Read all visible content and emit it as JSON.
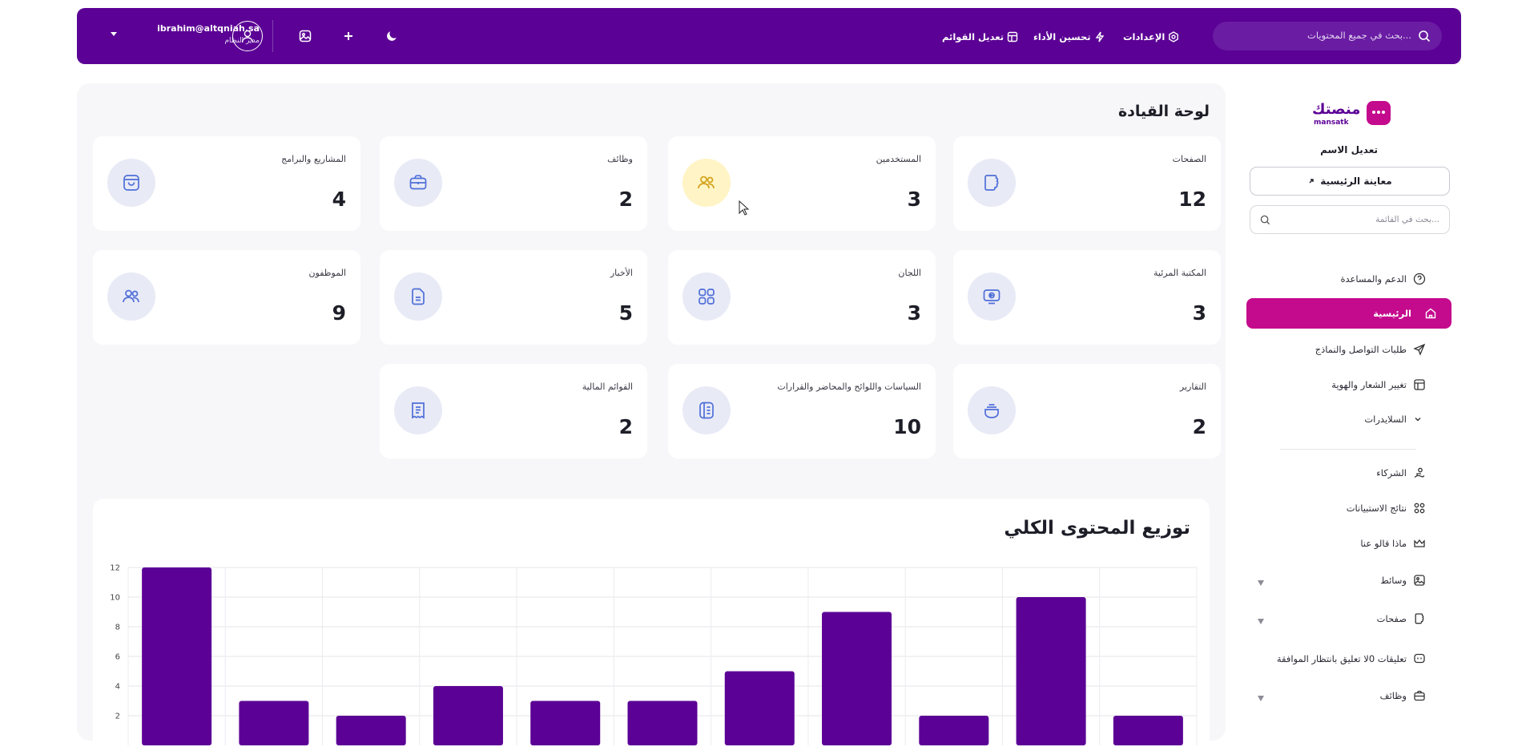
{
  "topbar": {
    "user_email": "ibrahim@altqniah.sa",
    "user_role": "مدير النظام",
    "links": {
      "edit_lists": "تعديل القوائم",
      "performance": "تحسين الأداء",
      "settings": "الإعدادات"
    },
    "search_placeholder": "بحث في جميع المحتويات..."
  },
  "dashboard": {
    "title": "لوحة القيادة",
    "cards": [
      {
        "label": "الصفحات",
        "value": "12",
        "icon": "pages-icon"
      },
      {
        "label": "المستخدمين",
        "value": "3",
        "icon": "users-icon"
      },
      {
        "label": "وظائف",
        "value": "2",
        "icon": "briefcase-icon"
      },
      {
        "label": "المشاريع والبرامج",
        "value": "4",
        "icon": "shopping-bag-icon"
      },
      {
        "label": "المكتبة المرئية",
        "value": "3",
        "icon": "video-library-icon"
      },
      {
        "label": "اللجان",
        "value": "3",
        "icon": "grid-icon"
      },
      {
        "label": "الأخبار",
        "value": "5",
        "icon": "news-icon"
      },
      {
        "label": "الموظفون",
        "value": "9",
        "icon": "employees-icon"
      },
      {
        "label": "التقارير",
        "value": "2",
        "icon": "reports-icon"
      },
      {
        "label": "السياسات واللوائح والمحاضر والقرارات",
        "value": "10",
        "icon": "policies-icon"
      },
      {
        "label": "القوائم المالية",
        "value": "2",
        "icon": "financial-lists-icon"
      }
    ]
  },
  "chart_data": {
    "type": "bar",
    "title": "توزيع المحتوى الكلي",
    "values": [
      12,
      3,
      2,
      4,
      3,
      3,
      5,
      9,
      2,
      10,
      2
    ],
    "yticks": [
      "12",
      "10",
      "8",
      "6",
      "4",
      "2"
    ],
    "ylim": [
      0,
      12
    ],
    "grid": true,
    "color": "#5b0195"
  },
  "sidebar": {
    "logo_text": "منصتك",
    "logo_subtext": "mansatk",
    "site_name": "تعديل الاسم",
    "preview_button": "معاينة الرئيسية",
    "search_placeholder": "بحث في القائمة...",
    "items": [
      {
        "label": "الدعم والمساعدة",
        "icon": "help-icon"
      },
      {
        "label": "الرئيسية",
        "icon": "home-icon",
        "active": true
      },
      {
        "label": "طلبات التواصل والنماذج",
        "icon": "send-icon"
      },
      {
        "label": "تغيير الشعار والهوية",
        "icon": "layout-icon"
      },
      {
        "label": "السلايدرات",
        "icon": "chevron-down-icon"
      },
      {
        "label": "الشركاء",
        "icon": "partners-icon"
      },
      {
        "label": "نتائج الاستبيانات",
        "icon": "survey-icon"
      },
      {
        "label": "ماذا قالو عنا",
        "icon": "crown-icon"
      },
      {
        "label": "وسائط",
        "icon": "media-icon"
      },
      {
        "label": "صفحات",
        "icon": "pages-icon"
      },
      {
        "label": "تعليقات 0لا تعليق بانتظار الموافقة",
        "icon": "comment-icon"
      },
      {
        "label": "وظائف",
        "icon": "briefcase-icon"
      }
    ]
  },
  "colors": {
    "primary": "#5b0195",
    "accent": "#c40a8d",
    "card_icon_bg": "#e8eaf6",
    "card_icon_yellow": "#fff4c5",
    "icon_blue": "#4f6fd8"
  }
}
